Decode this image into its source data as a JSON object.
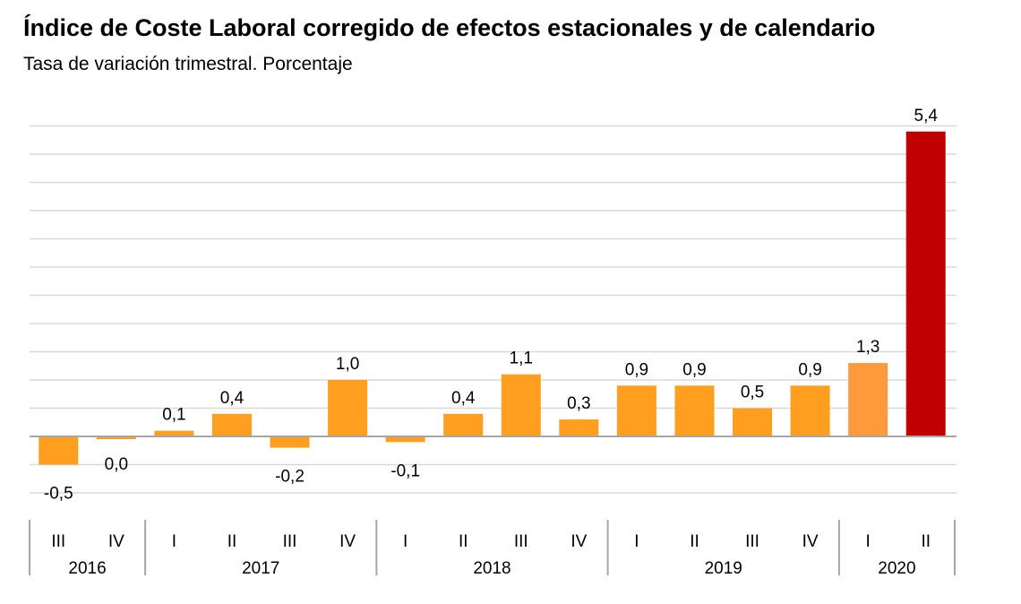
{
  "chart_data": {
    "type": "bar",
    "title": "Índice de Coste Laboral corregido de efectos estacionales y de calendario",
    "subtitle": "Tasa de variación trimestral. Porcentaje",
    "categories": [
      "III",
      "IV",
      "I",
      "II",
      "III",
      "IV",
      "I",
      "II",
      "III",
      "IV",
      "I",
      "II",
      "III",
      "IV",
      "I",
      "II"
    ],
    "years": [
      {
        "label": "2016",
        "count": 2
      },
      {
        "label": "2017",
        "count": 4
      },
      {
        "label": "2018",
        "count": 4
      },
      {
        "label": "2019",
        "count": 4
      },
      {
        "label": "2020",
        "count": 2
      }
    ],
    "values": [
      -0.5,
      0.0,
      0.1,
      0.4,
      -0.2,
      1.0,
      -0.1,
      0.4,
      1.1,
      0.3,
      0.9,
      0.9,
      0.5,
      0.9,
      1.3,
      5.4
    ],
    "data_labels": [
      "-0,5",
      "0,0",
      "0,1",
      "0,4",
      "-0,2",
      "1,0",
      "-0,1",
      "0,4",
      "1,1",
      "0,3",
      "0,9",
      "0,9",
      "0,5",
      "0,9",
      "1,3",
      "5,4"
    ],
    "ylim": [
      -1,
      5.5
    ],
    "grid_step": 0.5,
    "grid": true,
    "y_tick_labels_shown": false,
    "colors": {
      "default": "#FF9E1F",
      "highlight_2020_I": "#FF9A3C",
      "highlight_2020_II": "#C00000",
      "grid": "#D9D9D9",
      "zero_line": "#A6A6A6"
    }
  }
}
